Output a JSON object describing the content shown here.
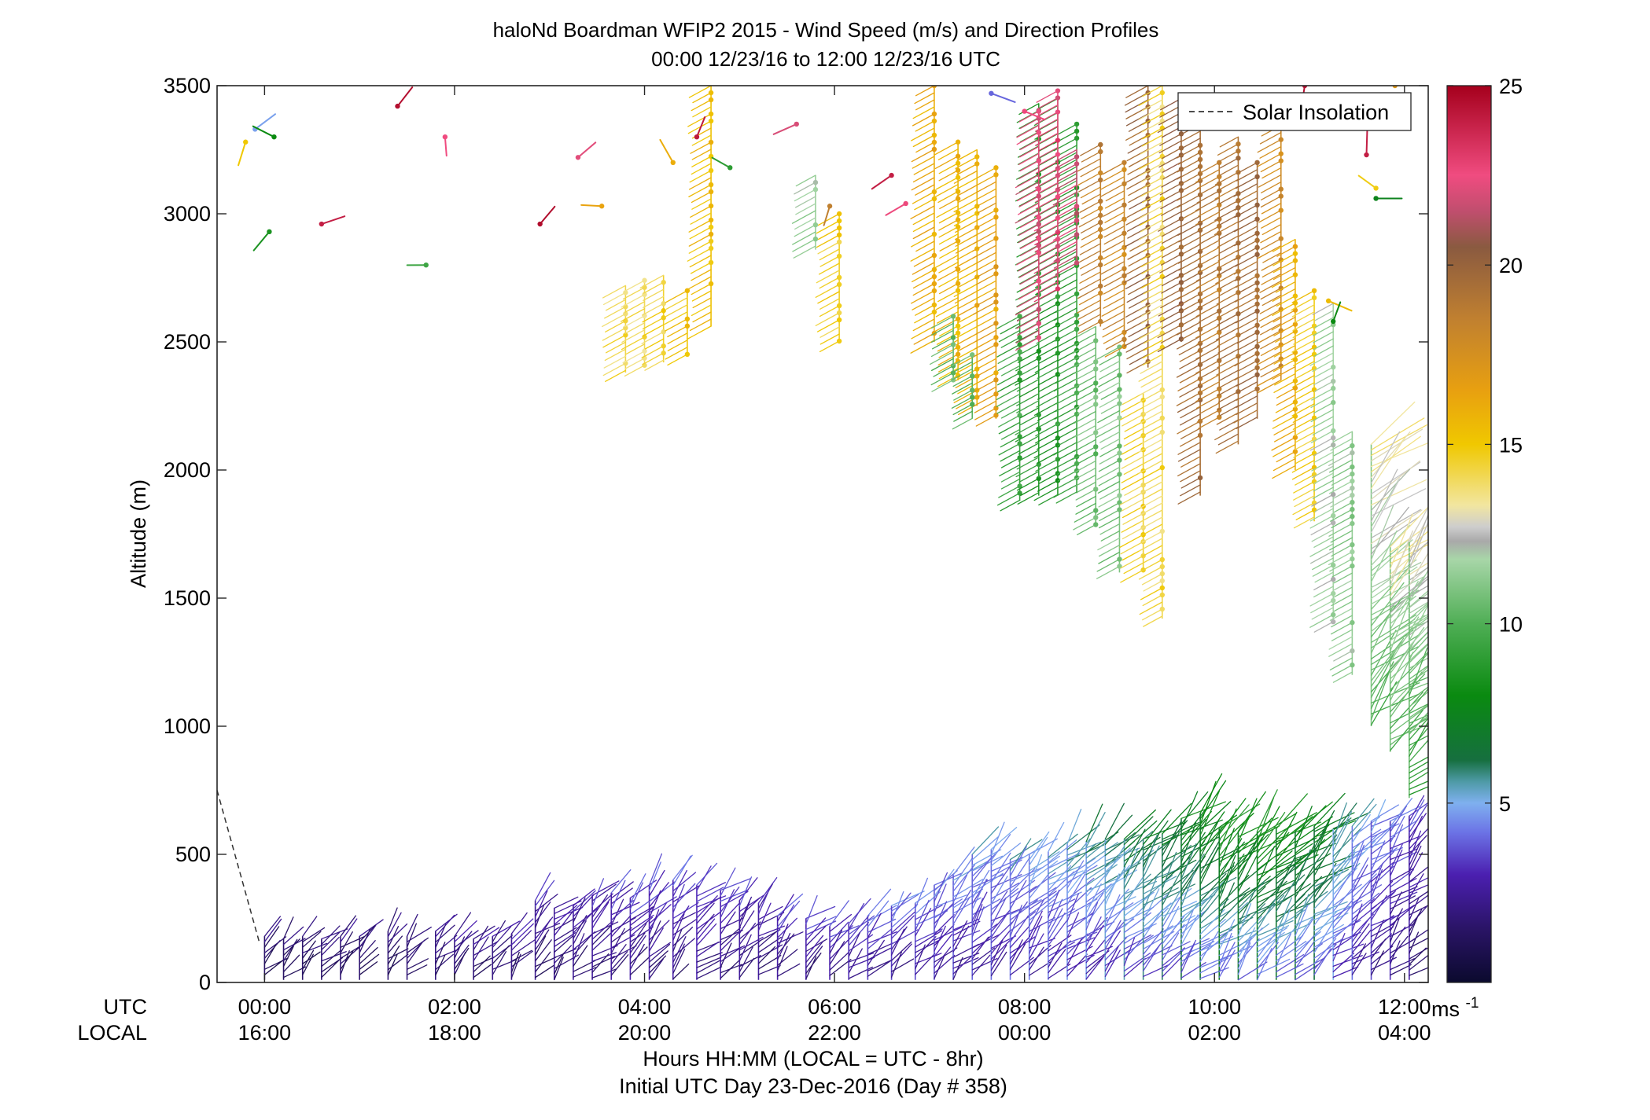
{
  "chart_data": {
    "type": "scatter",
    "title": "haloNd Boardman WFIP2 2015 - Wind Speed (m/s) and Direction Profiles",
    "subtitle": "00:00 12/23/16 to 12:00 12/23/16  UTC",
    "ylabel": "Altitude (m)",
    "xlabel": "Hours HH:MM  (LOCAL = UTC - 8hr)",
    "xlabel2": "Initial UTC Day 23-Dec-2016 (Day # 358)",
    "utc_row_label": "UTC",
    "local_row_label": "LOCAL",
    "xlim_hours": [
      -0.5,
      12.25
    ],
    "ylim": [
      0,
      3500
    ],
    "yticks": [
      0,
      500,
      1000,
      1500,
      2000,
      2500,
      3000,
      3500
    ],
    "ytick_labels": [
      "0",
      "500",
      "1000",
      "1500",
      "2000",
      "2500",
      "3000",
      "3500"
    ],
    "xticks_hours": [
      0,
      2,
      4,
      6,
      8,
      10,
      12
    ],
    "xtick_labels_utc": [
      "00:00",
      "02:00",
      "04:00",
      "06:00",
      "08:00",
      "10:00",
      "12:00"
    ],
    "xtick_labels_local": [
      "16:00",
      "18:00",
      "20:00",
      "22:00",
      "00:00",
      "02:00",
      "04:00"
    ],
    "colorbar": {
      "range": [
        0,
        25
      ],
      "ticks": [
        5,
        10,
        15,
        20,
        25
      ],
      "tick_labels": [
        "5",
        "10",
        "15",
        "20",
        "25"
      ],
      "unit_base": "ms",
      "unit_exp": "-1"
    },
    "legend": {
      "label": "Solar Insolation",
      "position": "top-right"
    },
    "solar_insolation_line": [
      [
        -0.5,
        750
      ],
      [
        -0.05,
        150
      ]
    ],
    "profiles": [
      {
        "t": 0.0,
        "min": 10,
        "max": 180,
        "spd": 1.5
      },
      {
        "t": 0.2,
        "min": 10,
        "max": 170,
        "spd": 1.5
      },
      {
        "t": 0.4,
        "min": 10,
        "max": 180,
        "spd": 1.6
      },
      {
        "t": 0.6,
        "min": 10,
        "max": 170,
        "spd": 1.7
      },
      {
        "t": 0.8,
        "min": 10,
        "max": 180,
        "spd": 1.8
      },
      {
        "t": 1.0,
        "min": 10,
        "max": 180,
        "spd": 1.8
      },
      {
        "t": 1.3,
        "min": 10,
        "max": 200,
        "spd": 1.8
      },
      {
        "t": 1.5,
        "min": 10,
        "max": 180,
        "spd": 1.9
      },
      {
        "t": 1.8,
        "min": 10,
        "max": 200,
        "spd": 2.0
      },
      {
        "t": 2.0,
        "min": 10,
        "max": 180,
        "spd": 2.0
      },
      {
        "t": 2.2,
        "min": 10,
        "max": 170,
        "spd": 2.1
      },
      {
        "t": 2.4,
        "min": 10,
        "max": 180,
        "spd": 2.2
      },
      {
        "t": 2.6,
        "min": 10,
        "max": 190,
        "spd": 2.3
      },
      {
        "t": 2.85,
        "min": 10,
        "max": 320,
        "spd": 2.4
      },
      {
        "t": 3.05,
        "min": 10,
        "max": 290,
        "spd": 2.5
      },
      {
        "t": 3.25,
        "min": 10,
        "max": 300,
        "spd": 2.6
      },
      {
        "t": 3.45,
        "min": 10,
        "max": 340,
        "spd": 2.7
      },
      {
        "t": 3.65,
        "min": 10,
        "max": 350,
        "spd": 2.8
      },
      {
        "t": 3.85,
        "min": 10,
        "max": 330,
        "spd": 2.9
      },
      {
        "t": 4.05,
        "min": 10,
        "max": 380,
        "spd": 3.0
      },
      {
        "t": 4.3,
        "min": 10,
        "max": 400,
        "spd": 3.0
      },
      {
        "t": 4.55,
        "min": 10,
        "max": 380,
        "spd": 3.1
      },
      {
        "t": 4.8,
        "min": 10,
        "max": 360,
        "spd": 3.0
      },
      {
        "t": 5.0,
        "min": 10,
        "max": 320,
        "spd": 2.8
      },
      {
        "t": 5.2,
        "min": 10,
        "max": 310,
        "spd": 2.7
      },
      {
        "t": 5.4,
        "min": 10,
        "max": 260,
        "spd": 2.8
      },
      {
        "t": 5.7,
        "min": 10,
        "max": 250,
        "spd": 2.9
      },
      {
        "t": 5.95,
        "min": 10,
        "max": 220,
        "spd": 3.0
      },
      {
        "t": 6.15,
        "min": 10,
        "max": 230,
        "spd": 3.2
      },
      {
        "t": 6.35,
        "min": 10,
        "max": 260,
        "spd": 3.4
      },
      {
        "t": 6.6,
        "min": 10,
        "max": 300,
        "spd": 3.5
      },
      {
        "t": 6.85,
        "min": 10,
        "max": 310,
        "spd": 3.6
      },
      {
        "t": 7.05,
        "min": 10,
        "max": 380,
        "spd": 3.8
      },
      {
        "t": 7.25,
        "min": 10,
        "max": 420,
        "spd": 3.9
      },
      {
        "t": 7.45,
        "min": 10,
        "max": 500,
        "spd": 4.0
      },
      {
        "t": 7.65,
        "min": 10,
        "max": 520,
        "spd": 4.1
      },
      {
        "t": 7.85,
        "min": 10,
        "max": 480,
        "spd": 4.2
      },
      {
        "t": 8.05,
        "min": 10,
        "max": 500,
        "spd": 4.3
      },
      {
        "t": 8.25,
        "min": 10,
        "max": 510,
        "spd": 4.4
      },
      {
        "t": 8.45,
        "min": 10,
        "max": 540,
        "spd": 4.6
      },
      {
        "t": 8.65,
        "min": 10,
        "max": 550,
        "spd": 4.8
      },
      {
        "t": 8.85,
        "min": 10,
        "max": 560,
        "spd": 5.2
      },
      {
        "t": 9.05,
        "min": 10,
        "max": 560,
        "spd": 5.5
      },
      {
        "t": 9.25,
        "min": 10,
        "max": 560,
        "spd": 5.8
      },
      {
        "t": 9.45,
        "min": 10,
        "max": 580,
        "spd": 6.0
      },
      {
        "t": 9.65,
        "min": 10,
        "max": 640,
        "spd": 6.4
      },
      {
        "t": 9.85,
        "min": 10,
        "max": 660,
        "spd": 6.8
      },
      {
        "t": 10.05,
        "min": 10,
        "max": 600,
        "spd": 7.2
      },
      {
        "t": 10.25,
        "min": 10,
        "max": 590,
        "spd": 7.0
      },
      {
        "t": 10.45,
        "min": 10,
        "max": 590,
        "spd": 7.2
      },
      {
        "t": 10.65,
        "min": 10,
        "max": 600,
        "spd": 6.8
      },
      {
        "t": 10.85,
        "min": 10,
        "max": 590,
        "spd": 6.6
      },
      {
        "t": 11.05,
        "min": 10,
        "max": 610,
        "spd": 6.2
      },
      {
        "t": 11.25,
        "min": 10,
        "max": 600,
        "spd": 5.0
      },
      {
        "t": 11.45,
        "min": 10,
        "max": 610,
        "spd": 4.2
      },
      {
        "t": 11.65,
        "min": 10,
        "max": 630,
        "spd": 3.6
      },
      {
        "t": 11.85,
        "min": 10,
        "max": 630,
        "spd": 3.2
      },
      {
        "t": 12.05,
        "min": 10,
        "max": 650,
        "spd": 2.8
      },
      {
        "t": 3.8,
        "min": 2380,
        "max": 2720,
        "spd": 14.2
      },
      {
        "t": 4.0,
        "min": 2400,
        "max": 2740,
        "spd": 14.0
      },
      {
        "t": 4.2,
        "min": 2420,
        "max": 2760,
        "spd": 14.5
      },
      {
        "t": 4.45,
        "min": 2450,
        "max": 2700,
        "spd": 15.0
      },
      {
        "t": 4.7,
        "min": 2560,
        "max": 3500,
        "spd": 15.3
      },
      {
        "t": 6.05,
        "min": 2500,
        "max": 3000,
        "spd": 14.6
      },
      {
        "t": 5.8,
        "min": 2860,
        "max": 3150,
        "spd": 11.5
      },
      {
        "t": 7.05,
        "min": 2500,
        "max": 3500,
        "spd": 16.0
      },
      {
        "t": 7.3,
        "min": 2350,
        "max": 3280,
        "spd": 15.6
      },
      {
        "t": 7.5,
        "min": 2250,
        "max": 3250,
        "spd": 15.8
      },
      {
        "t": 7.7,
        "min": 2200,
        "max": 3180,
        "spd": 16.5
      },
      {
        "t": 7.25,
        "min": 2350,
        "max": 2600,
        "spd": 10.4
      },
      {
        "t": 7.45,
        "min": 2200,
        "max": 2450,
        "spd": 10.2
      },
      {
        "t": 7.95,
        "min": 1880,
        "max": 2600,
        "spd": 9.4
      },
      {
        "t": 8.15,
        "min": 1900,
        "max": 3430,
        "spd": 9.0
      },
      {
        "t": 8.35,
        "min": 1900,
        "max": 3450,
        "spd": 8.8
      },
      {
        "t": 8.55,
        "min": 1910,
        "max": 3350,
        "spd": 9.2
      },
      {
        "t": 8.15,
        "min": 2500,
        "max": 3400,
        "spd": 22.0
      },
      {
        "t": 8.35,
        "min": 2700,
        "max": 3480,
        "spd": 22.5
      },
      {
        "t": 8.55,
        "min": 2800,
        "max": 3250,
        "spd": 21.8
      },
      {
        "t": 8.75,
        "min": 1780,
        "max": 2560,
        "spd": 10.6
      },
      {
        "t": 8.8,
        "min": 2560,
        "max": 3270,
        "spd": 18.5
      },
      {
        "t": 9.0,
        "min": 1600,
        "max": 2480,
        "spd": 10.9
      },
      {
        "t": 9.05,
        "min": 2480,
        "max": 3200,
        "spd": 18.0
      },
      {
        "t": 9.25,
        "min": 1600,
        "max": 2300,
        "spd": 14.5
      },
      {
        "t": 9.3,
        "min": 2400,
        "max": 3500,
        "spd": 19.8
      },
      {
        "t": 9.45,
        "min": 1420,
        "max": 3500,
        "spd": 14.2
      },
      {
        "t": 9.65,
        "min": 2500,
        "max": 3450,
        "spd": 20.0
      },
      {
        "t": 9.85,
        "min": 1900,
        "max": 3350,
        "spd": 19.4
      },
      {
        "t": 10.05,
        "min": 2200,
        "max": 3200,
        "spd": 18.8
      },
      {
        "t": 10.25,
        "min": 2100,
        "max": 3300,
        "spd": 19.2
      },
      {
        "t": 10.45,
        "min": 2200,
        "max": 3200,
        "spd": 19.5
      },
      {
        "t": 10.7,
        "min": 2350,
        "max": 3400,
        "spd": 17.8
      },
      {
        "t": 10.85,
        "min": 2000,
        "max": 2900,
        "spd": 16.0
      },
      {
        "t": 11.05,
        "min": 1800,
        "max": 2700,
        "spd": 14.8
      },
      {
        "t": 11.25,
        "min": 1400,
        "max": 2650,
        "spd": 11.8
      },
      {
        "t": 11.45,
        "min": 1200,
        "max": 2150,
        "spd": 11.4
      },
      {
        "t": 11.65,
        "min": 1000,
        "max": 2100,
        "spd": 11.0
      },
      {
        "t": 11.85,
        "min": 900,
        "max": 1700,
        "spd": 10.8
      },
      {
        "t": 12.05,
        "min": 720,
        "max": 1720,
        "spd": 10.5
      }
    ],
    "scattered_barbs": [
      {
        "t": -0.2,
        "alt": 3280,
        "spd": 15.0
      },
      {
        "t": -0.1,
        "alt": 3330,
        "spd": 4.8
      },
      {
        "t": 0.1,
        "alt": 3300,
        "spd": 8.0
      },
      {
        "t": 0.05,
        "alt": 2930,
        "spd": 8.5
      },
      {
        "t": 0.6,
        "alt": 2960,
        "spd": 24.0
      },
      {
        "t": 1.4,
        "alt": 3420,
        "spd": 24.5
      },
      {
        "t": 1.9,
        "alt": 3300,
        "spd": 22.5
      },
      {
        "t": 1.7,
        "alt": 2800,
        "spd": 9.5
      },
      {
        "t": 2.9,
        "alt": 2960,
        "spd": 24.6
      },
      {
        "t": 3.3,
        "alt": 3220,
        "spd": 22.2
      },
      {
        "t": 3.55,
        "alt": 3030,
        "spd": 16.4
      },
      {
        "t": 4.3,
        "alt": 3200,
        "spd": 16.0
      },
      {
        "t": 4.55,
        "alt": 3300,
        "spd": 24.2
      },
      {
        "t": 4.9,
        "alt": 3180,
        "spd": 9.0
      },
      {
        "t": 5.6,
        "alt": 3350,
        "spd": 22.0
      },
      {
        "t": 5.95,
        "alt": 3030,
        "spd": 18.5
      },
      {
        "t": 6.6,
        "alt": 3150,
        "spd": 24.0
      },
      {
        "t": 6.75,
        "alt": 3040,
        "spd": 22.6
      },
      {
        "t": 7.65,
        "alt": 3470,
        "spd": 4.0
      },
      {
        "t": 8.0,
        "alt": 3400,
        "spd": 22.6
      },
      {
        "t": 10.95,
        "alt": 3500,
        "spd": 24.5
      },
      {
        "t": 11.2,
        "alt": 2660,
        "spd": 15.5
      },
      {
        "t": 11.25,
        "alt": 2580,
        "spd": 8.0
      },
      {
        "t": 11.6,
        "alt": 3230,
        "spd": 24.0
      },
      {
        "t": 11.7,
        "alt": 3100,
        "spd": 14.8
      },
      {
        "t": 11.7,
        "alt": 3060,
        "spd": 7.5
      },
      {
        "t": 11.9,
        "alt": 3500,
        "spd": 17.0
      }
    ]
  }
}
